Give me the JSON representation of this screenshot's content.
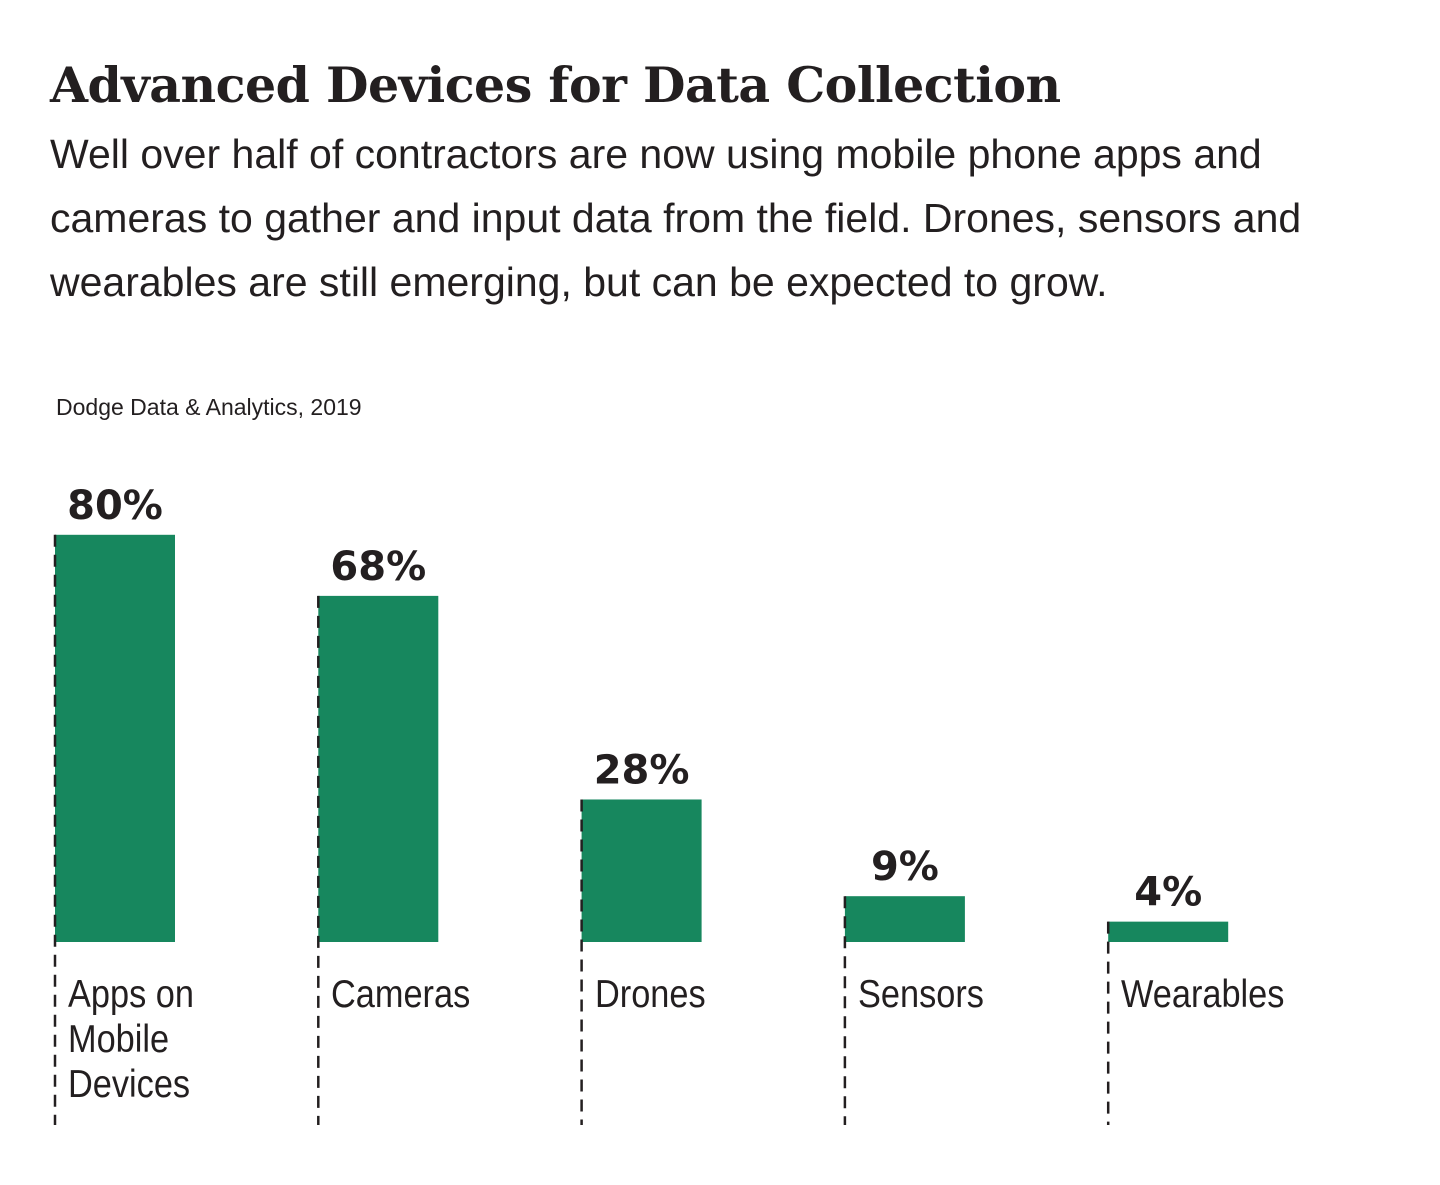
{
  "chart_data": {
    "type": "bar",
    "title": "Advanced Devices for Data Collection",
    "subtitle": "Well over half of contractors are now using mobile phone apps and cameras to gather and input data from the field. Drones, sensors and wearables are still emerging, but can be expected to grow.",
    "source": "Dodge Data & Analytics, 2019",
    "categories": [
      "Apps on Mobile Devices",
      "Cameras",
      "Drones",
      "Sensors",
      "Wearables"
    ],
    "values": [
      80,
      68,
      28,
      9,
      4
    ],
    "value_labels": [
      "80%",
      "68%",
      "28%",
      "9%",
      "4%"
    ],
    "color": "#17875e"
  }
}
